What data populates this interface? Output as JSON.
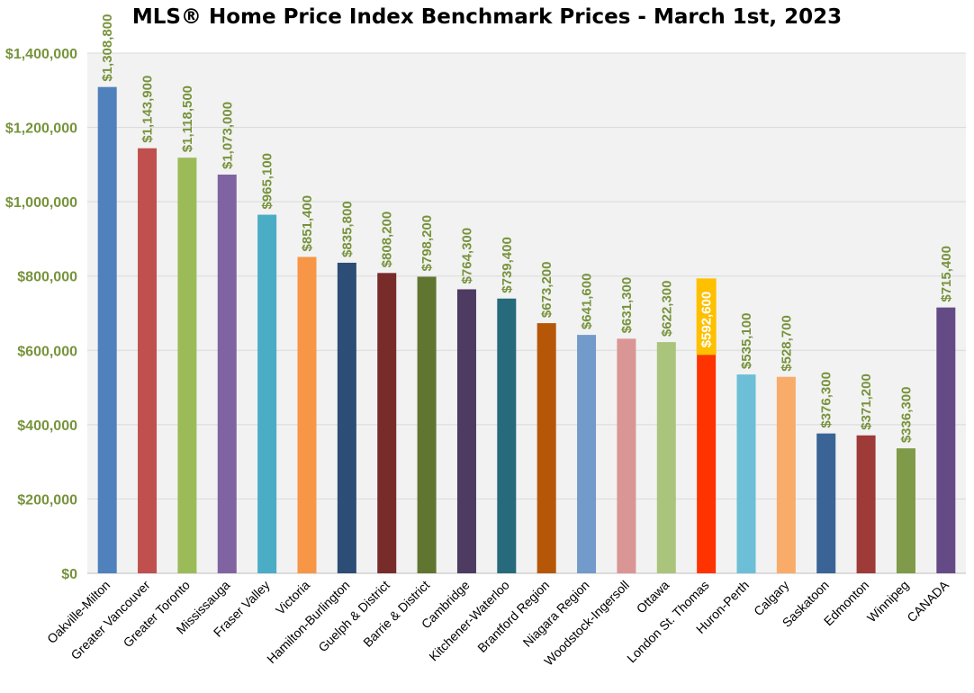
{
  "chart_data": {
    "type": "bar",
    "title": "MLS® Home Price Index Benchmark Prices - March 1st, 2023",
    "categories": [
      "Oakville-Milton",
      "Greater Vancouver",
      "Greater Toronto",
      "Mississauga",
      "Fraser Valley",
      "Victoria",
      "Hamilton-Burlington",
      "Guelph & District",
      "Barrie & District",
      "Cambridge",
      "Kitchener-Waterloo",
      "Brantford Region",
      "Niagara Region",
      "Woodstock-Ingersoll",
      "Ottawa",
      "London St. Thomas",
      "Huron-Perth",
      "Calgary",
      "Saskatoon",
      "Edmonton",
      "Winnipeg",
      "CANADA"
    ],
    "values": [
      1308800,
      1143900,
      1118500,
      1073000,
      965100,
      851400,
      835800,
      808200,
      798200,
      764300,
      739400,
      673200,
      641600,
      631300,
      622300,
      592600,
      535100,
      528700,
      376300,
      371200,
      336300,
      715400
    ],
    "data_labels": [
      "$1,308,800",
      "$1,143,900",
      "$1,118,500",
      "$1,073,000",
      "$965,100",
      "$851,400",
      "$835,800",
      "$808,200",
      "$798,200",
      "$764,300",
      "$739,400",
      "$673,200",
      "$641,600",
      "$631,300",
      "$622,300",
      "$592,600",
      "$535,100",
      "$528,700",
      "$376,300",
      "$371,200",
      "$336,300",
      "$715,400"
    ],
    "colors": [
      "#4f81bd",
      "#c0504d",
      "#9bbb59",
      "#8064a2",
      "#4bacc6",
      "#f79646",
      "#2c4d75",
      "#772c2a",
      "#5f7530",
      "#4d3b62",
      "#276a7c",
      "#b65708",
      "#729aca",
      "#d99694",
      "#abc47c",
      "#ff3300",
      "#6cbfd6",
      "#f9ab6a",
      "#3a6496",
      "#9e3a38",
      "#7f9a48",
      "#654b86"
    ],
    "highlight_index": 15,
    "highlight_color": "#ffc000",
    "ylim": [
      0,
      1400000
    ],
    "yticks": [
      0,
      200000,
      400000,
      600000,
      800000,
      1000000,
      1200000,
      1400000
    ],
    "ytick_labels": [
      "$0",
      "$200,000",
      "$400,000",
      "$600,000",
      "$800,000",
      "$1,000,000",
      "$1,200,000",
      "$1,400,000"
    ],
    "xlabel": "",
    "ylabel": "",
    "grid": true,
    "legend": "none",
    "plot_background": "#f2f2f2",
    "label_color": "#77933c"
  }
}
